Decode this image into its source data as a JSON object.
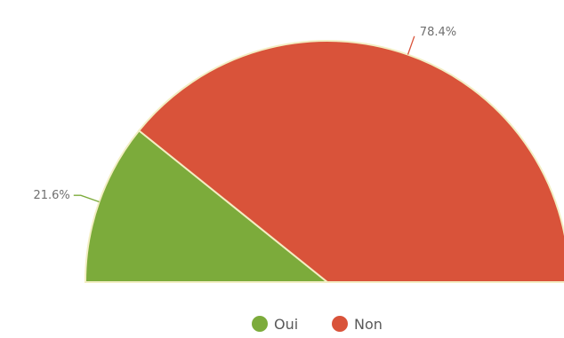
{
  "chart_data": {
    "type": "pie",
    "subtype": "half-donut-semicircle",
    "categories": [
      "Oui",
      "Non"
    ],
    "values": [
      21.6,
      78.4
    ],
    "labels": [
      "21.6%",
      "78.4%"
    ],
    "colors": [
      "#7cab3b",
      "#d9533a"
    ],
    "legend_placement": "bottom-center",
    "legend": [
      "Oui",
      "Non"
    ]
  }
}
